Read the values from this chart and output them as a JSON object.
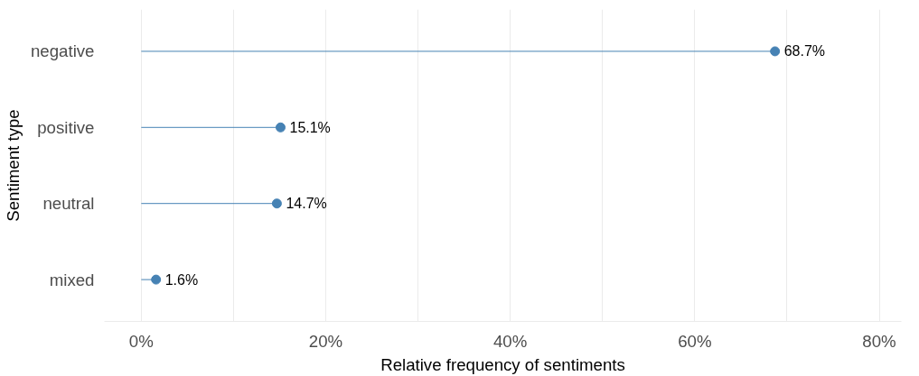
{
  "chart_data": {
    "type": "lollipop",
    "orientation": "horizontal",
    "xlabel": "Relative frequency of sentiments",
    "ylabel": "Sentiment type",
    "categories": [
      "negative",
      "positive",
      "neutral",
      "mixed"
    ],
    "values": [
      68.7,
      15.1,
      14.7,
      1.6
    ],
    "value_labels": [
      "68.7%",
      "15.1%",
      "14.7%",
      "1.6%"
    ],
    "color": "#4682b4",
    "xlim": [
      -4,
      82.4
    ],
    "xticks": [
      {
        "value": 0,
        "label": "0%"
      },
      {
        "value": 10,
        "label": null
      },
      {
        "value": 20,
        "label": "20%"
      },
      {
        "value": 30,
        "label": null
      },
      {
        "value": 40,
        "label": "40%"
      },
      {
        "value": 50,
        "label": null
      },
      {
        "value": 60,
        "label": "60%"
      },
      {
        "value": 70,
        "label": null
      },
      {
        "value": 80,
        "label": "80%"
      }
    ],
    "grid": "x",
    "marker": "circle"
  }
}
